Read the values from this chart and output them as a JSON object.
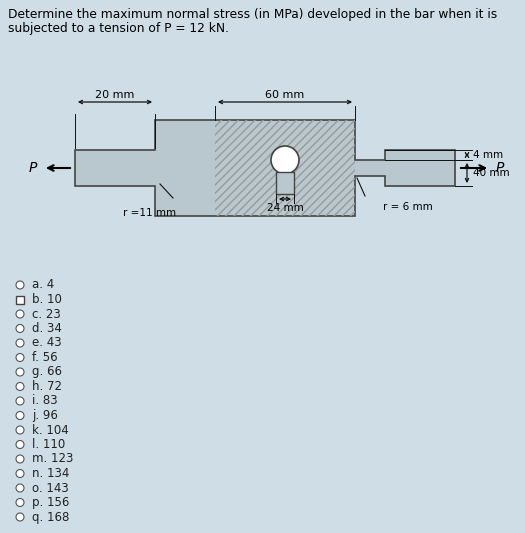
{
  "title_line1": "Determine the maximum normal stress (in MPa) developed in the bar when it is",
  "title_line2": "subjected to a tension of P = 12 kN.",
  "bg_color": "#cfdde6",
  "options": [
    "a. 4",
    "b. 10",
    "c. 23",
    "d. 34",
    "e. 43",
    "f. 56",
    "g. 66",
    "h. 72",
    "i. 83",
    "j. 96",
    "k. 104",
    "l. 110",
    "m. 123",
    "n. 134",
    "o. 143",
    "p. 156",
    "q. 168"
  ],
  "selected_option": "b. 10",
  "bar_fill": "#b8c8ce",
  "bar_edge": "#444444",
  "bar_hatch_color": "#888888",
  "dim_color": "#111111",
  "label_60mm": "60 mm",
  "label_20mm": "20 mm",
  "label_40mm": "40 mm",
  "label_4mm": "4 mm",
  "label_r11mm": "r =11 mm",
  "label_r6mm": "r = 6 mm",
  "label_24mm": "24 mm",
  "label_P": "P",
  "opt_fontsize": 8.5,
  "title_fontsize": 8.8
}
